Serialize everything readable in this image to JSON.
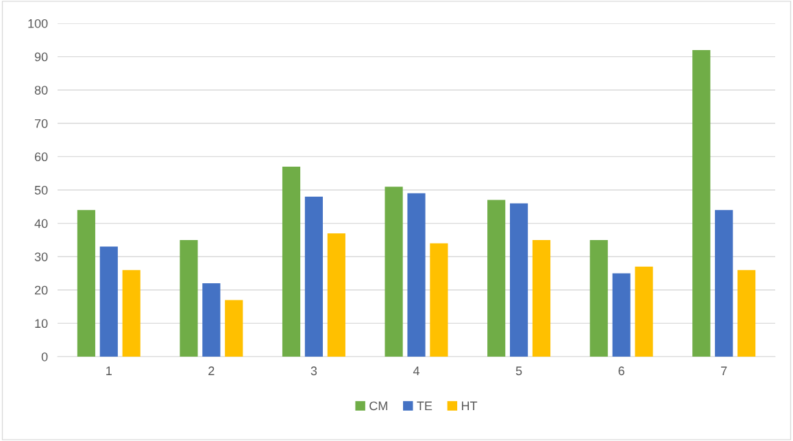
{
  "chart_data": {
    "type": "bar",
    "categories": [
      "1",
      "2",
      "3",
      "4",
      "5",
      "6",
      "7"
    ],
    "series": [
      {
        "name": "CM",
        "color": "#70ad47",
        "values": [
          44,
          35,
          57,
          51,
          47,
          35,
          92
        ]
      },
      {
        "name": "TE",
        "color": "#4472c4",
        "values": [
          33,
          22,
          48,
          49,
          46,
          25,
          44
        ]
      },
      {
        "name": "HT",
        "color": "#ffc000",
        "values": [
          26,
          17,
          37,
          34,
          35,
          27,
          26
        ]
      }
    ],
    "ylim": [
      0,
      100
    ],
    "yticks": [
      0,
      10,
      20,
      30,
      40,
      50,
      60,
      70,
      80,
      90,
      100
    ],
    "grid": "y",
    "legend": "bottom"
  }
}
